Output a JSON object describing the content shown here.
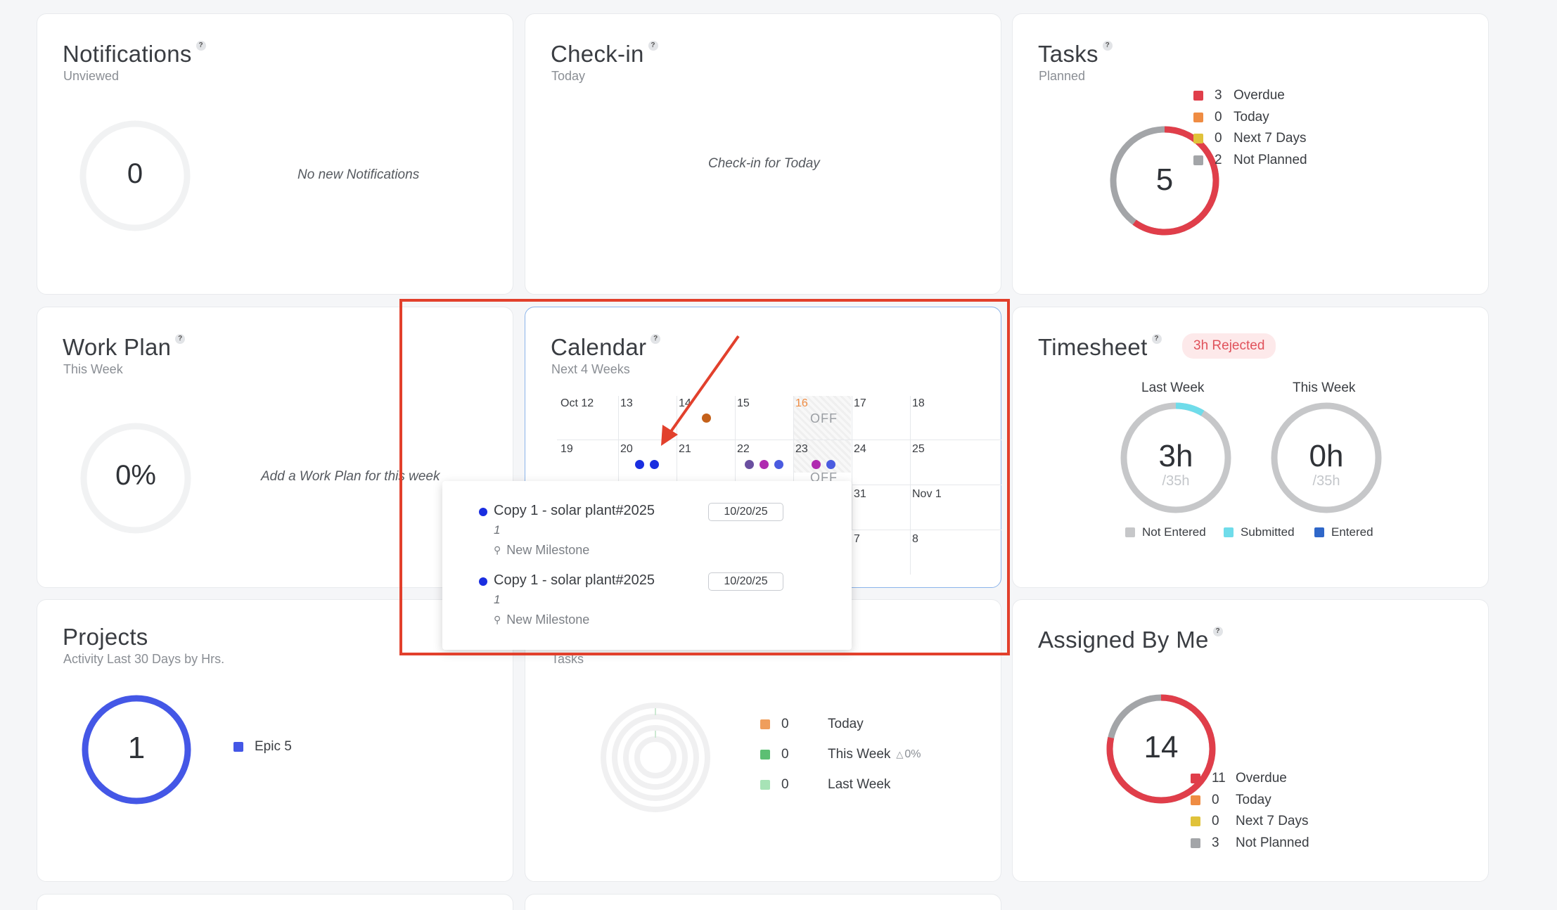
{
  "notifications": {
    "title": "Notifications",
    "help": "?",
    "subtitle": "Unviewed",
    "count": "0",
    "empty": "No new Notifications"
  },
  "checkin": {
    "title": "Check-in",
    "help": "?",
    "subtitle": "Today",
    "empty": "Check-in for Today"
  },
  "tasks": {
    "title": "Tasks",
    "help": "?",
    "subtitle": "Planned",
    "count": "5",
    "legend": [
      {
        "num": "3",
        "label": "Overdue",
        "color": "#e03e4a"
      },
      {
        "num": "0",
        "label": "Today",
        "color": "#ef8c43"
      },
      {
        "num": "0",
        "label": "Next 7 Days",
        "color": "#e0c23a"
      },
      {
        "num": "2",
        "label": "Not Planned",
        "color": "#a3a5a8"
      }
    ]
  },
  "workplan": {
    "title": "Work Plan",
    "help": "?",
    "subtitle": "This Week",
    "percent": "0%",
    "empty": "Add a Work Plan for this week"
  },
  "calendar": {
    "title": "Calendar",
    "help": "?",
    "subtitle": "Next 4 Weeks",
    "week1": [
      "Oct 12",
      "13",
      "14",
      "15",
      "16",
      "17",
      "18"
    ],
    "week2": [
      "19",
      "20",
      "21",
      "22",
      "23",
      "24",
      "25"
    ],
    "week3": [
      "31",
      "Nov 1"
    ],
    "week4": [
      "7",
      "8"
    ],
    "off_label": "OFF",
    "today_color": "#ef8c43"
  },
  "popup": {
    "items": [
      {
        "title": "Copy 1 - solar plant#2025",
        "sub": "1",
        "milestone": "New Milestone",
        "date": "10/20/25"
      },
      {
        "title": "Copy 1 - solar plant#2025",
        "sub": "1",
        "milestone": "New Milestone",
        "date": "10/20/25"
      }
    ]
  },
  "timesheet": {
    "title": "Timesheet",
    "help": "?",
    "badge": "3h Rejected",
    "last_week": {
      "label": "Last Week",
      "hours": "3h",
      "total": "/35h",
      "submitted_fraction": 0.086
    },
    "this_week": {
      "label": "This Week",
      "hours": "0h",
      "total": "/35h"
    },
    "legend": [
      {
        "label": "Not Entered",
        "color": "#c6c7c9"
      },
      {
        "label": "Submitted",
        "color": "#6fdcea"
      },
      {
        "label": "Entered",
        "color": "#2f67c9"
      }
    ]
  },
  "projects": {
    "title": "Projects",
    "subtitle": "Activity Last 30 Days by Hrs.",
    "count": "1",
    "legend": [
      {
        "label": "Epic 5",
        "color": "#4457e6"
      }
    ]
  },
  "team_tasks": {
    "subtitle": "Tasks",
    "legend": [
      {
        "num": "0",
        "label": "Today",
        "color": "#ef9e5c"
      },
      {
        "num": "0",
        "label": "This Week",
        "trend": "0%",
        "color": "#5cbf73"
      },
      {
        "num": "0",
        "label": "Last Week",
        "color": "#a7e3b6"
      }
    ]
  },
  "assigned": {
    "title": "Assigned By Me",
    "help": "?",
    "count": "14",
    "legend": [
      {
        "num": "11",
        "label": "Overdue",
        "color": "#e03e4a"
      },
      {
        "num": "0",
        "label": "Today",
        "color": "#ef8c43"
      },
      {
        "num": "0",
        "label": "Next 7 Days",
        "color": "#e0c23a"
      },
      {
        "num": "3",
        "label": "Not Planned",
        "color": "#a3a5a8"
      }
    ]
  },
  "annotation": {
    "highlight_color": "#e2402c"
  }
}
